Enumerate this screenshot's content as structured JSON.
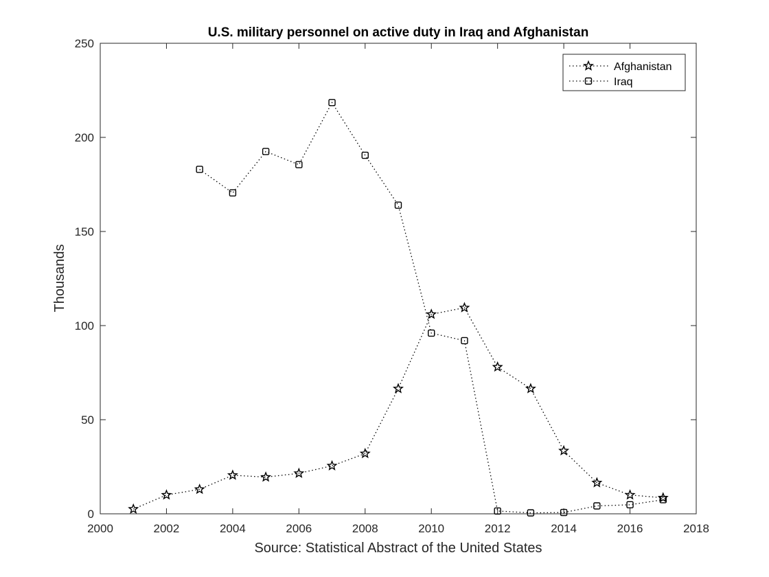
{
  "chart_data": {
    "type": "line",
    "title": "U.S. military personnel on active duty in Iraq and Afghanistan",
    "xlabel": "Source: Statistical Abstract of the United States",
    "ylabel": "Thousands",
    "xlim": [
      2000,
      2018
    ],
    "ylim": [
      0,
      250
    ],
    "x_ticks": [
      2000,
      2002,
      2004,
      2006,
      2008,
      2010,
      2012,
      2014,
      2016,
      2018
    ],
    "y_ticks": [
      0,
      50,
      100,
      150,
      200,
      250
    ],
    "grid": false,
    "legend_position": "top-right",
    "line_color": "#000000",
    "series": [
      {
        "name": "Afghanistan",
        "marker": "star",
        "x": [
          2001,
          2002,
          2003,
          2004,
          2005,
          2006,
          2007,
          2008,
          2009,
          2010,
          2011,
          2012,
          2013,
          2014,
          2015,
          2016,
          2017
        ],
        "y": [
          2.5,
          10,
          13,
          20.5,
          19.5,
          21.5,
          25.5,
          32,
          66.5,
          106,
          109.5,
          78,
          66.5,
          33.5,
          16.5,
          10,
          8.5
        ]
      },
      {
        "name": "Iraq",
        "marker": "square",
        "x": [
          2003,
          2004,
          2005,
          2006,
          2007,
          2008,
          2009,
          2010,
          2011,
          2012,
          2013,
          2014,
          2015,
          2016,
          2017
        ],
        "y": [
          183,
          170.5,
          192.5,
          185.5,
          218.5,
          190.5,
          164,
          96,
          92,
          1.5,
          0.5,
          0.7,
          4.2,
          4.8,
          7.5
        ]
      }
    ]
  }
}
